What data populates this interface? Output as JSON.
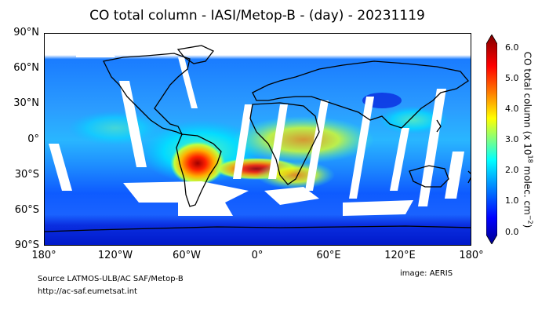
{
  "title": "CO total column - IASI/Metop-B - (day) - 20231119",
  "map": {
    "y_ticks": [
      "90°N",
      "60°N",
      "30°N",
      "0°",
      "30°S",
      "60°S",
      "90°S"
    ],
    "x_ticks": [
      "180°",
      "120°W",
      "60°W",
      "0°",
      "60°E",
      "120°E",
      "180°"
    ]
  },
  "colorbar": {
    "ticks": [
      "6.0",
      "5.0",
      "4.0",
      "3.0",
      "2.0",
      "1.0",
      "0.0"
    ],
    "label_prefix": "CO total column (x 10",
    "label_exp": "18",
    "label_mid": " molec. cm",
    "label_exp2": "−2",
    "label_suffix": ")",
    "min": 0.0,
    "max": 6.0,
    "colormap": "jet",
    "colors": [
      "#00008f",
      "#0000ff",
      "#00a0ff",
      "#00ffff",
      "#80ff80",
      "#ffff00",
      "#ff8000",
      "#ff0000",
      "#800000"
    ]
  },
  "footer": {
    "source": "Source LATMOS-ULB/AC SAF/Metop-B",
    "url": "http://ac-saf.eumetsat.int",
    "credit": "image: AERIS"
  }
}
